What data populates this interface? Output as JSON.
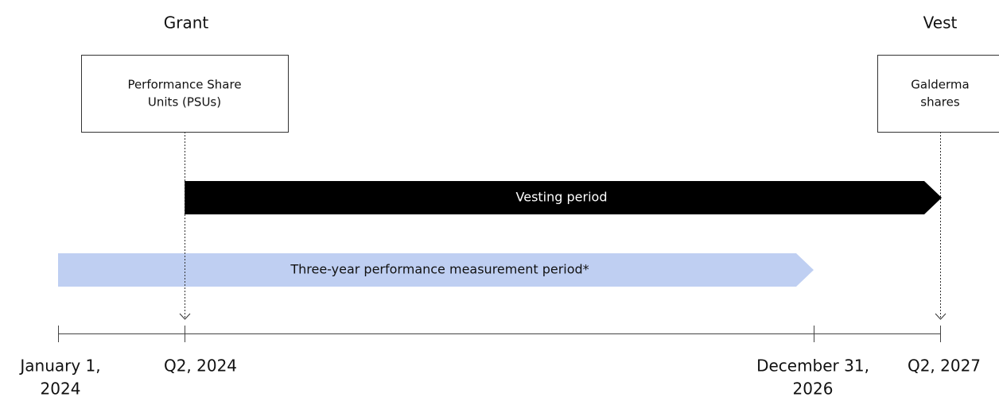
{
  "phases": {
    "grant": "Grant",
    "vest": "Vest"
  },
  "boxes": [
    {
      "lines": [
        "Performance Share",
        "Units (PSUs)"
      ]
    },
    {
      "lines": [
        "Galderma",
        "shares"
      ]
    }
  ],
  "periods": [
    {
      "label": "Vesting period"
    },
    {
      "label": "Three-year performance measurement period*"
    }
  ],
  "timeline": [
    {
      "lines": [
        "January 1,",
        "2024"
      ]
    },
    {
      "lines": [
        "Q2, 2024"
      ]
    },
    {
      "lines": [
        "December 31,",
        "2026"
      ]
    },
    {
      "lines": [
        "Q2, 2027"
      ]
    }
  ]
}
